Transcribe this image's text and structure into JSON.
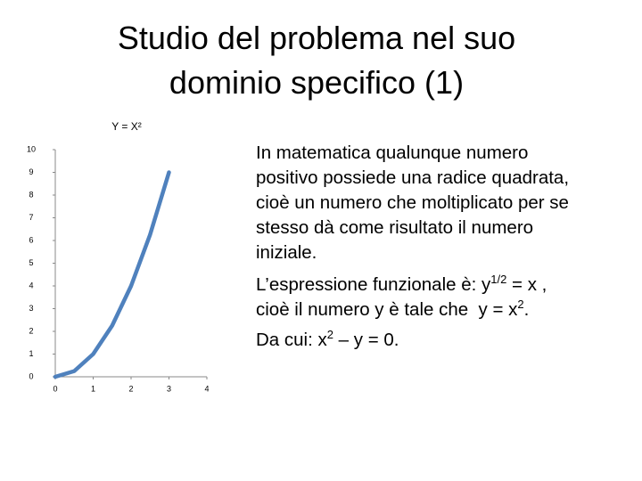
{
  "slide": {
    "title": [
      "Studio del problema nel suo",
      "dominio specifico (1)"
    ],
    "body": [
      [
        {
          "text": "In matematica qualunque numero"
        }
      ],
      [
        {
          "text": "positivo possiede una radice quadrata,"
        }
      ],
      [
        {
          "text": "cioè un numero che moltiplicato per se"
        }
      ],
      [
        {
          "text": "stesso dà come risultato il numero"
        }
      ],
      [
        {
          "text": "iniziale."
        }
      ],
      [
        {
          "text": "L’espressione funzionale è: y"
        },
        {
          "text": "1/2",
          "sup": true
        },
        {
          "text": " = x ,"
        }
      ],
      [
        {
          "text": "cioè il numero y è tale che  y = x"
        },
        {
          "text": "2",
          "sup": true
        },
        {
          "text": "."
        }
      ],
      [
        {
          "text": "Da cui: x"
        },
        {
          "text": "2",
          "sup": true
        },
        {
          "text": " – y = 0."
        }
      ]
    ]
  },
  "chart_data": {
    "type": "line",
    "title": "Y = X²",
    "x": [
      0,
      0.5,
      1,
      1.5,
      2,
      2.5,
      3
    ],
    "series": [
      {
        "color": "#4f81bd",
        "values": [
          0,
          0.25,
          1,
          2.25,
          4,
          6.25,
          9
        ]
      }
    ],
    "xlim": [
      0,
      4
    ],
    "xticks": [
      0,
      1,
      2,
      3,
      4
    ],
    "ylim": [
      0,
      10
    ],
    "yticks": [
      0,
      1,
      2,
      3,
      4,
      5,
      6,
      7,
      8,
      9,
      10
    ]
  }
}
